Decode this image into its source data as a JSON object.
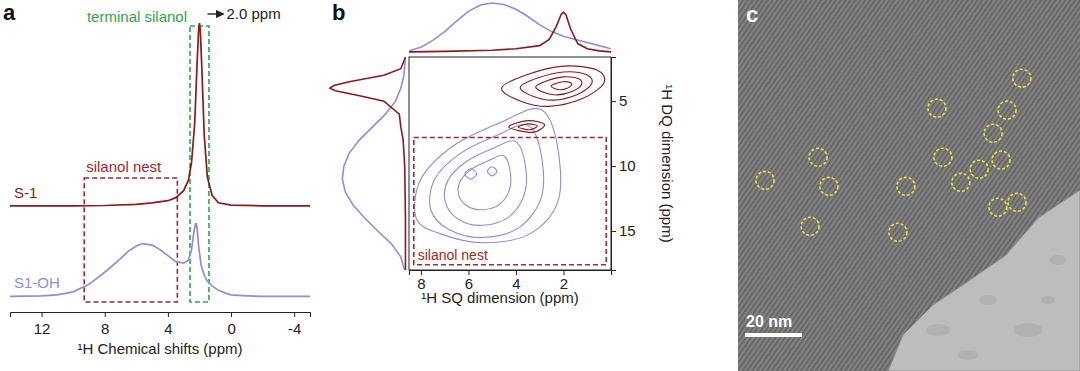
{
  "chart_data": [
    {
      "type": "line",
      "panel_label": "a",
      "xlabel": "¹H Chemical shifts (ppm)",
      "xlim": [
        14,
        -5
      ],
      "xticks": [
        12,
        8,
        4,
        0,
        -4
      ],
      "ylim": [
        0,
        10
      ],
      "tick_labels": "x",
      "series": [
        {
          "name": "S-1",
          "color": "#8b1a1a",
          "x": [
            14,
            12,
            10,
            8,
            6,
            5,
            4,
            3.5,
            3.0,
            2.7,
            2.5,
            2.3,
            2.15,
            2.05,
            2.0,
            1.95,
            1.85,
            1.7,
            1.5,
            1.2,
            0.8,
            0,
            -2,
            -4,
            -5
          ],
          "values": [
            3.45,
            3.45,
            3.45,
            3.46,
            3.5,
            3.55,
            3.62,
            3.72,
            3.95,
            4.3,
            4.9,
            6.2,
            8.2,
            9.3,
            9.5,
            9.3,
            8.0,
            5.8,
            4.4,
            3.8,
            3.55,
            3.47,
            3.45,
            3.45,
            3.45
          ]
        },
        {
          "name": "S1-OH",
          "color": "#8e8edc",
          "x": [
            14,
            12,
            11,
            10,
            9,
            8,
            7,
            6.5,
            6,
            5.6,
            5,
            4.5,
            4,
            3.5,
            3.0,
            2.7,
            2.5,
            2.35,
            2.25,
            2.2,
            2.15,
            2.05,
            1.9,
            1.7,
            1.5,
            1.2,
            0.8,
            0.3,
            0,
            -1,
            -2,
            -4,
            -5
          ],
          "values": [
            0.45,
            0.47,
            0.5,
            0.6,
            0.85,
            1.25,
            1.7,
            1.95,
            2.12,
            2.2,
            2.15,
            2.0,
            1.8,
            1.6,
            1.55,
            1.65,
            2.0,
            2.6,
            2.85,
            2.85,
            2.7,
            2.1,
            1.5,
            1.15,
            0.95,
            0.8,
            0.65,
            0.55,
            0.5,
            0.47,
            0.45,
            0.45,
            0.45
          ]
        }
      ],
      "regions": [
        {
          "label": "terminal silanol",
          "x": [
            2.6,
            1.4
          ],
          "color": "#2ca64b"
        },
        {
          "label": "silanol nest",
          "x": [
            9.3,
            3.4
          ],
          "color": "#a0282c"
        }
      ],
      "peak_label": {
        "text": "2.0 ppm",
        "x": 2.0
      }
    },
    {
      "type": "contour",
      "panel_label": "b",
      "xlabel": "¹H SQ dimension (ppm)",
      "ylabel": "¹H DQ dimension (ppm)",
      "xlim": [
        8.5,
        0
      ],
      "xticks": [
        8,
        6,
        4,
        2
      ],
      "ylim": [
        1.6,
        18
      ],
      "yticks": [
        5,
        10,
        15
      ],
      "series": [
        {
          "color": "#8e8edc",
          "contours": [
            {
              "x": [
                3.0,
                4.6,
                6.6,
                8.0,
                8.2,
                7.2,
                5.4,
                3.4,
                2.2,
                2.3
              ],
              "y": [
                5.6,
                6.6,
                8.4,
                11.0,
                14.0,
                15.2,
                15.9,
                15.2,
                12.5,
                8.0
              ]
            },
            {
              "x": [
                3.53,
                4.78,
                6.34,
                7.43,
                7.58,
                6.8,
                5.4,
                3.84,
                2.9,
                2.98
              ],
              "y": [
                6.83,
                7.61,
                9.02,
                11.04,
                13.38,
                14.9,
                15.5,
                14.7,
                12.21,
                8.7
              ]
            },
            {
              "x": [
                4.06,
                4.95,
                6.07,
                6.86,
                6.97,
                6.41,
                5.4,
                4.28,
                3.61,
                3.66
              ],
              "y": [
                8.06,
                8.62,
                9.63,
                11.09,
                12.77,
                14.11,
                14.56,
                13.89,
                11.93,
                9.41
              ]
            },
            {
              "x": [
                4.54,
                5.11,
                5.83,
                6.34,
                6.41,
                6.05,
                5.4,
                4.68,
                4.25,
                4.28
              ],
              "y": [
                9.18,
                9.54,
                10.19,
                11.13,
                12.21,
                13.07,
                13.36,
                12.93,
                11.67,
                10.05
              ]
            },
            {
              "x": [
                5.9,
                6.15,
                5.9,
                5.65
              ],
              "y": [
                10.2,
                10.6,
                11.0,
                10.6
              ]
            },
            {
              "x": [
                5.0,
                5.2,
                5.0,
                4.8
              ],
              "y": [
                10.05,
                10.4,
                10.75,
                10.4
              ]
            }
          ]
        },
        {
          "color": "#8b1a1a",
          "contours": [
            {
              "x": [
                4.6,
                3.6,
                2.0,
                0.6,
                0.3,
                1.2,
                2.6,
                3.8
              ],
              "y": [
                4.0,
                3.0,
                2.3,
                2.6,
                3.6,
                4.8,
                5.4,
                5.0
              ]
            },
            {
              "x": [
                3.82,
                3.12,
                2.0,
                1.02,
                0.81,
                1.44,
                2.42,
                3.26
              ],
              "y": [
                3.94,
                3.24,
                2.75,
                2.96,
                3.66,
                4.5,
                4.92,
                4.64
              ]
            },
            {
              "x": [
                3.17,
                2.72,
                2.0,
                1.37,
                1.24,
                1.64,
                2.27,
                2.81
              ],
              "y": [
                3.89,
                3.44,
                3.13,
                3.26,
                3.71,
                4.25,
                4.52,
                4.34
              ]
            },
            {
              "x": [
                2.52,
                2.32,
                2.0,
                1.72,
                1.66,
                1.84,
                2.12,
                2.36
              ],
              "y": [
                3.84,
                3.64,
                3.5,
                3.56,
                3.76,
                4.0,
                4.12,
                4.04
              ]
            },
            {
              "x": [
                4.3,
                3.5,
                2.8,
                3.3
              ],
              "y": [
                7.0,
                6.5,
                6.8,
                7.4
              ]
            },
            {
              "x": [
                3.9,
                3.5,
                3.1,
                3.4
              ],
              "y": [
                7.0,
                6.75,
                6.9,
                7.2
              ]
            }
          ]
        }
      ],
      "region": {
        "label": "silanol nest",
        "x": [
          8.3,
          0.2
        ],
        "y": [
          7.8,
          17.6
        ],
        "color": "#a0282c"
      },
      "top_projection": {
        "ylim": [
          0,
          1
        ],
        "series": [
          {
            "color": "#8e8edc",
            "x": [
              8.5,
              8,
              7.5,
              7,
              6.5,
              6,
              5.5,
              5,
              4.5,
              4,
              3.5,
              3,
              2.5,
              2,
              1.5,
              1,
              0.5,
              0
            ],
            "values": [
              0.08,
              0.15,
              0.28,
              0.45,
              0.65,
              0.84,
              0.96,
              1.0,
              0.97,
              0.88,
              0.74,
              0.58,
              0.45,
              0.36,
              0.3,
              0.24,
              0.18,
              0.12
            ]
          },
          {
            "color": "#8b1a1a",
            "x": [
              8.5,
              7,
              5,
              4,
              3,
              2.6,
              2.3,
              2.1,
              2.0,
              1.9,
              1.7,
              1.4,
              1,
              0.5,
              0
            ],
            "values": [
              0.06,
              0.07,
              0.09,
              0.12,
              0.18,
              0.3,
              0.55,
              0.78,
              0.82,
              0.78,
              0.5,
              0.22,
              0.12,
              0.08,
              0.06
            ]
          }
        ]
      },
      "left_projection": {
        "ylim": [
          0,
          1
        ],
        "series": [
          {
            "color": "#8e8edc",
            "x": [
              1.6,
              3,
              4,
              5,
              6,
              7,
              8,
              9,
              10,
              11,
              12,
              13,
              14,
              15,
              16,
              17,
              18
            ],
            "values": [
              0.02,
              0.04,
              0.08,
              0.15,
              0.28,
              0.45,
              0.62,
              0.75,
              0.82,
              0.84,
              0.8,
              0.7,
              0.55,
              0.38,
              0.2,
              0.08,
              0.03
            ]
          },
          {
            "color": "#8b1a1a",
            "x": [
              1.6,
              2.5,
              3,
              3.5,
              3.8,
              4.0,
              4.2,
              4.6,
              5,
              6,
              7,
              8,
              10,
              14,
              18
            ],
            "values": [
              0.02,
              0.08,
              0.3,
              0.75,
              0.95,
              1.0,
              0.93,
              0.6,
              0.3,
              0.1,
              0.08,
              0.05,
              0.03,
              0.02,
              0.02
            ]
          }
        ]
      }
    },
    {
      "type": "image",
      "panel_label": "c",
      "xlim": [
        0,
        120
      ],
      "ylim": [
        0,
        130
      ],
      "tick_labels": false,
      "color": "#e6e04a",
      "points": {
        "x": [
          99.6,
          69.8,
          94.4,
          28.1,
          71.9,
          89.5,
          92.3,
          9.5,
          31.9,
          58.9,
          78.2,
          84.6,
          91.2,
          97.9,
          25.3,
          56.1
        ],
        "y": [
          27.4,
          37.9,
          38.6,
          55.1,
          55.1,
          46.7,
          56.1,
          63.2,
          65.3,
          65.3,
          63.9,
          59.3,
          72.6,
          70.9,
          79.3,
          81.4
        ]
      },
      "scale_bar": {
        "length": 20,
        "label": "20 nm"
      }
    }
  ]
}
